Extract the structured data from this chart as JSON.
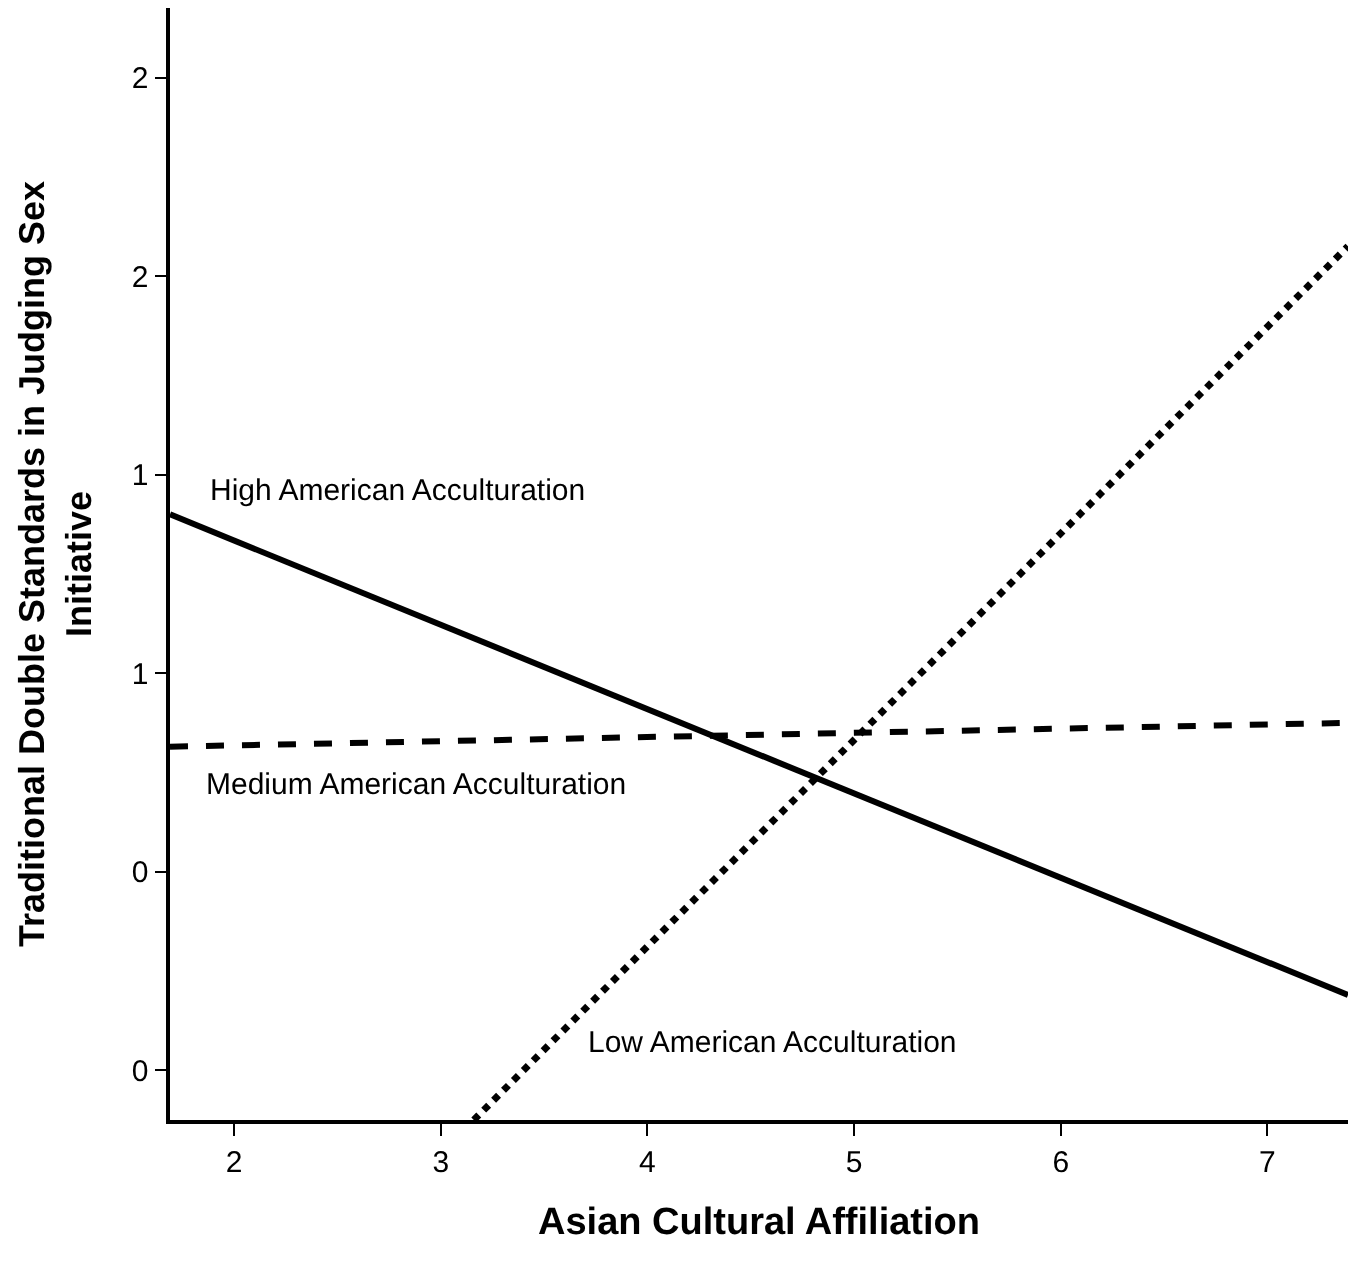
{
  "chart_data": {
    "type": "line",
    "xlabel": "Asian Cultural Affiliation",
    "ylabel": "Traditional Double Standards in Judging Sex Initiative",
    "xlim": [
      1.69,
      7.39
    ],
    "ylim": [
      -0.125,
      2.675
    ],
    "xticks": [
      2,
      3,
      4,
      5,
      6,
      7
    ],
    "yticks": [
      {
        "value": 0,
        "label": "0"
      },
      {
        "value": 0.5,
        "label": "0"
      },
      {
        "value": 1,
        "label": "1"
      },
      {
        "value": 1.5,
        "label": "1"
      },
      {
        "value": 2,
        "label": "2"
      },
      {
        "value": 2.5,
        "label": "2"
      }
    ],
    "series": [
      {
        "name": "High American Acculturation",
        "color": "#000000",
        "line_style": "solid",
        "x": [
          1.69,
          7.39
        ],
        "values": [
          1.4,
          0.19
        ]
      },
      {
        "name": "Medium American Acculturation",
        "color": "#000000",
        "line_style": "dashed",
        "x": [
          1.69,
          7.39
        ],
        "values": [
          0.815,
          0.875
        ]
      },
      {
        "name": "Low American Acculturation",
        "color": "#000000",
        "line_style": "dotted",
        "x": [
          3.16,
          7.39
        ],
        "values": [
          -0.125,
          2.075
        ]
      }
    ],
    "legend": false,
    "marker": "none"
  }
}
